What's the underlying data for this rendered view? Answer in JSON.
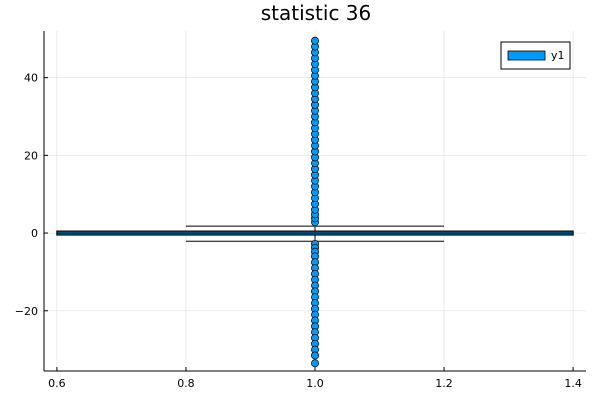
{
  "chart_data": {
    "type": "box",
    "title": "statistic 36",
    "xlabel": "",
    "ylabel": "",
    "xlim": [
      0.58,
      1.42
    ],
    "ylim": [
      -35.5,
      52
    ],
    "xticks": [
      0.6,
      0.8,
      1.0,
      1.2,
      1.4
    ],
    "xtick_labels": [
      "0.6",
      "0.8",
      "1.0",
      "1.2",
      "1.4"
    ],
    "yticks": [
      -20,
      0,
      20,
      40
    ],
    "ytick_labels": [
      "−20",
      "0",
      "20",
      "40"
    ],
    "grid": true,
    "legend": {
      "position": "top-right",
      "entries": [
        "y1"
      ]
    },
    "series": [
      {
        "name": "y1",
        "color": "#009AFA",
        "box": {
          "x_left": 0.6,
          "x_right": 1.4,
          "q1": -0.5,
          "median": 0.0,
          "q3": 0.5
        },
        "whiskers": {
          "lower": -2.1,
          "upper": 1.8,
          "cap_x_left": 0.8,
          "cap_x_right": 1.2
        },
        "outliers_x": 1.0,
        "outliers_upper": [
          2.8,
          3.8,
          4.8,
          6,
          7.5,
          9,
          10.5,
          12,
          13.5,
          15,
          16.5,
          18,
          19.5,
          21,
          22.5,
          24,
          25.5,
          27,
          28.5,
          30,
          31.5,
          33,
          34.5,
          36,
          37.5,
          39,
          40.5,
          42,
          43.5,
          45,
          46.5,
          48,
          49.5
        ],
        "outliers_lower": [
          -2.8,
          -3.8,
          -4.8,
          -6,
          -7.5,
          -9,
          -10.5,
          -12,
          -13.5,
          -15,
          -16.5,
          -18,
          -19.5,
          -21,
          -22.5,
          -24,
          -25.5,
          -27,
          -28.5,
          -30,
          -31.5,
          -33.5
        ]
      }
    ]
  }
}
